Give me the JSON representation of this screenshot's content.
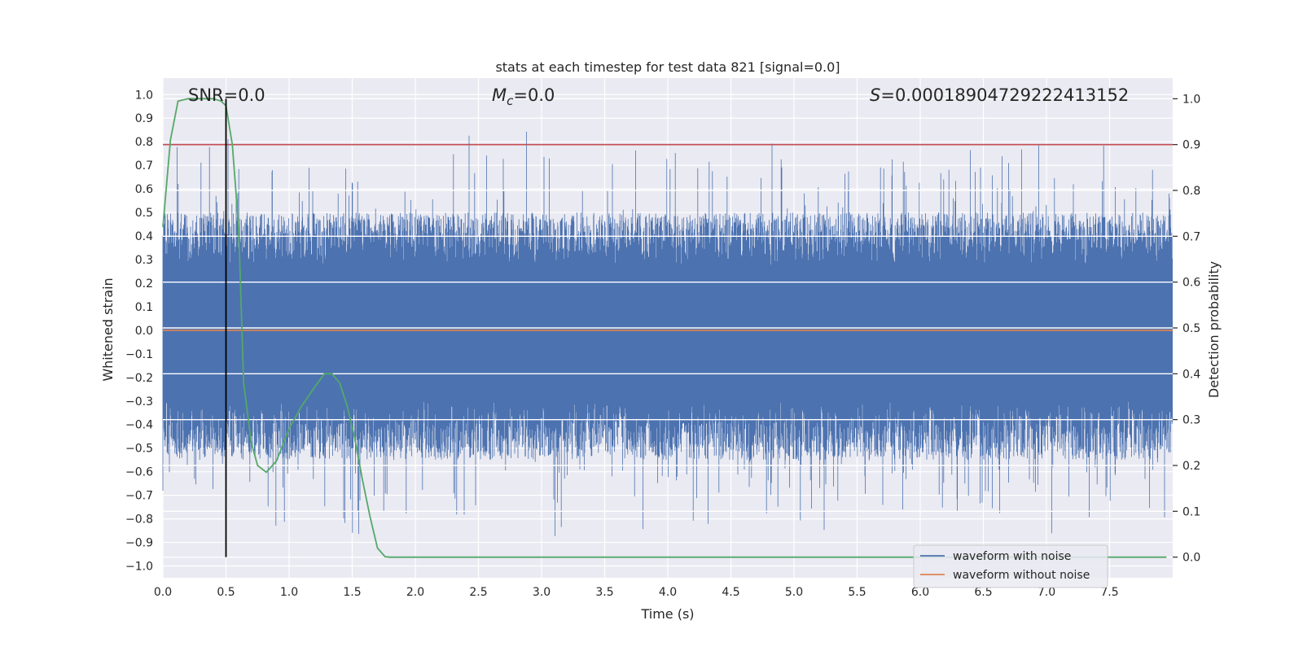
{
  "chart_data": {
    "type": "line",
    "title": "stats at each timestep for test data 821 [signal=0.0]",
    "xlabel": "Time (s)",
    "ylabel": "Whitened strain",
    "y2label": "Detection probability",
    "xlim": [
      0.0,
      8.0
    ],
    "ylim": [
      -1.05,
      1.07
    ],
    "y2lim": [
      -0.045,
      1.045
    ],
    "x_ticks": [
      "0.0",
      "0.5",
      "1.0",
      "1.5",
      "2.0",
      "2.5",
      "3.0",
      "3.5",
      "4.0",
      "4.5",
      "5.0",
      "5.5",
      "6.0",
      "6.5",
      "7.0",
      "7.5"
    ],
    "y_ticks": [
      "1.0",
      "0.9",
      "0.8",
      "0.7",
      "0.6",
      "0.5",
      "0.4",
      "0.3",
      "0.2",
      "0.1",
      "0.0",
      "−0.1",
      "−0.2",
      "−0.3",
      "−0.4",
      "−0.5",
      "−0.6",
      "−0.7",
      "−0.8",
      "−0.9",
      "−1.0"
    ],
    "y2_ticks": [
      "1.0",
      "0.9",
      "0.8",
      "0.7",
      "0.6",
      "0.5",
      "0.4",
      "0.3",
      "0.2",
      "0.1",
      "0.0"
    ],
    "annotations": {
      "snr": "SNR=0.0",
      "mc_symbol": "M",
      "mc_sub": "c",
      "mc_value": "=0.0",
      "s_symbol": "S",
      "s_value": "=0.00018904729222413152"
    },
    "legend": {
      "position": "lower-right",
      "entries": [
        "waveform with noise",
        "waveform without noise"
      ]
    },
    "series": [
      {
        "name": "waveform with noise",
        "color": "#4c72b0",
        "type": "noise",
        "band": [
          -0.55,
          0.5
        ],
        "extremes": [
          -0.93,
          1.0
        ]
      },
      {
        "name": "waveform without noise",
        "color": "#dd8452",
        "type": "constant",
        "value": 0.0
      }
    ],
    "detection_probability": {
      "color": "#55a868",
      "x": [
        0.0,
        0.06,
        0.12,
        0.2,
        0.3,
        0.4,
        0.46,
        0.5,
        0.55,
        0.6,
        0.64,
        0.7,
        0.75,
        0.82,
        0.9,
        1.0,
        1.1,
        1.2,
        1.28,
        1.34,
        1.4,
        1.46,
        1.52,
        1.58,
        1.64,
        1.7,
        1.76,
        1.8,
        2.0,
        3.0,
        4.0,
        5.0,
        6.0,
        7.0,
        7.95
      ],
      "y": [
        0.72,
        0.91,
        0.995,
        1.0,
        1.0,
        1.0,
        0.995,
        0.985,
        0.9,
        0.72,
        0.38,
        0.25,
        0.2,
        0.185,
        0.21,
        0.28,
        0.33,
        0.37,
        0.4,
        0.4,
        0.38,
        0.33,
        0.26,
        0.17,
        0.09,
        0.02,
        0.001,
        0.0,
        0.0,
        0.0,
        0.0,
        0.0,
        0.0,
        0.0,
        0.0
      ]
    },
    "threshold_line": {
      "color": "#c44e52",
      "value": 0.9,
      "axis": "right"
    },
    "marker_line": {
      "color": "#000000",
      "x": 0.5,
      "range_right": [
        0.0,
        1.0
      ]
    },
    "grid": true
  }
}
